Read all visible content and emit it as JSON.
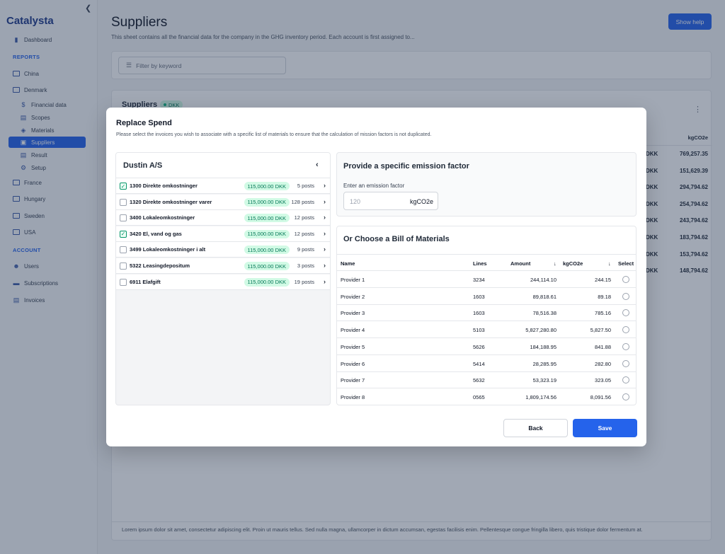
{
  "app": {
    "name": "Catalysta"
  },
  "sidebar": {
    "reports_label": "REPORTS",
    "account_label": "ACCOUNT",
    "items": {
      "dashboard": "Dashboard",
      "china": "China",
      "denmark": "Denmark",
      "financial_data": "Financial data",
      "scopes": "Scopes",
      "materials": "Materials",
      "suppliers": "Suppliers",
      "result": "Result",
      "setup": "Setup",
      "france": "France",
      "hungary": "Hungary",
      "sweden": "Sweden",
      "usa": "USA",
      "users": "Users",
      "subscriptions": "Subscriptions",
      "invoices": "Invoices"
    }
  },
  "page": {
    "title": "Suppliers",
    "description": "This sheet contains all the financial data for the company in the GHG inventory period. Each account is first assigned to...",
    "help_button": "Show help",
    "filter_placeholder": "Filter by keyword",
    "card_title": "Suppliers",
    "card_badge": "DKK",
    "col_kgco2e": "kgCO2e",
    "bg_rows": [
      {
        "cur": "DKK",
        "val": "769,257.35"
      },
      {
        "cur": "DKK",
        "val": "151,629.39"
      },
      {
        "cur": "DKK",
        "val": "294,794.62"
      },
      {
        "cur": "DKK",
        "val": "254,794.62"
      },
      {
        "cur": "DKK",
        "val": "243,794.62"
      },
      {
        "cur": "DKK",
        "val": "183,794.62"
      },
      {
        "cur": "DKK",
        "val": "153,794.62"
      },
      {
        "cur": "DKK",
        "val": "148,794.62"
      }
    ],
    "footer": "Lorem ipsum dolor sit amet, consectetur adipiscing elit. Proin ut mauris tellus. Sed nulla magna, ullamcorper in dictum accumsan, egestas facilisis enim. Pellentesque congue fringilla libero, quis tristique dolor fermentum at."
  },
  "modal": {
    "title": "Replace Spend",
    "description": "Please select the invoices you wish to associate with a specific list of materials to ensure that the calculation of mission factors is not duplicated.",
    "supplier_name": "Dustin A/S",
    "invoices": [
      {
        "name": "1300 Direkte omkostninger",
        "amount": "115,000.00 DKK",
        "posts": "5 posts",
        "checked": true
      },
      {
        "name": "1320 Direkte omkostninger varer",
        "amount": "115,000.00 DKK",
        "posts": "128 posts",
        "checked": false
      },
      {
        "name": "3400 Lokaleomkostninger",
        "amount": "115,000.00 DKK",
        "posts": "12 posts",
        "checked": false
      },
      {
        "name": "3420 El, vand og gas",
        "amount": "115,000.00 DKK",
        "posts": "12 posts",
        "checked": true
      },
      {
        "name": "3499 Lokaleomkostninger i alt",
        "amount": "115,000.00 DKK",
        "posts": "9 posts",
        "checked": false
      },
      {
        "name": "5322 Leasingdepositum",
        "amount": "115,000.00 DKK",
        "posts": "3 posts",
        "checked": false
      },
      {
        "name": "6911 Elafgift",
        "amount": "115,000.00 DKK",
        "posts": "19 posts",
        "checked": false
      }
    ],
    "emission": {
      "title": "Provide a specific emission factor",
      "label": "Enter an emission factor",
      "placeholder": "120",
      "unit": "kgCO2e"
    },
    "bom": {
      "title": "Or Choose a Bill of Materials",
      "columns": {
        "name": "Name",
        "lines": "Lines",
        "amount": "Amount",
        "kgco2e": "kgCO2e",
        "select": "Select"
      },
      "rows": [
        {
          "name": "Provider 1",
          "lines": "3234",
          "amount": "244,114.10",
          "kgco2e": "244.15"
        },
        {
          "name": "Provider 2",
          "lines": "1603",
          "amount": "89,818.61",
          "kgco2e": "89.18"
        },
        {
          "name": "Provider 3",
          "lines": "1603",
          "amount": "78,516.38",
          "kgco2e": "785.16"
        },
        {
          "name": "Provider 4",
          "lines": "5103",
          "amount": "5,827,280.80",
          "kgco2e": "5,827.50"
        },
        {
          "name": "Provider 5",
          "lines": "5626",
          "amount": "184,188.95",
          "kgco2e": "841.88"
        },
        {
          "name": "Provider 6",
          "lines": "5414",
          "amount": "28,285.95",
          "kgco2e": "282.80"
        },
        {
          "name": "Provider 7",
          "lines": "5632",
          "amount": "53,323.19",
          "kgco2e": "323.05"
        },
        {
          "name": "Provider 8",
          "lines": "0565",
          "amount": "1,809,174.56",
          "kgco2e": "8,091.56"
        }
      ]
    },
    "back_label": "Back",
    "save_label": "Save"
  }
}
